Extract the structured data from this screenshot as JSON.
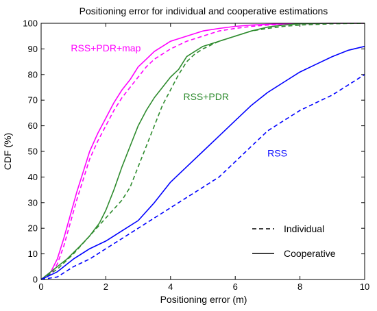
{
  "chart_data": {
    "type": "line",
    "title": "Positioning error for individual and cooperative estimations",
    "xlabel": "Positioning error (m)",
    "ylabel": "CDF (%)",
    "xlim": [
      0,
      10
    ],
    "ylim": [
      0,
      100
    ],
    "xticks": [
      "0",
      "2",
      "4",
      "6",
      "8",
      "10"
    ],
    "yticks": [
      "0",
      "10",
      "20",
      "30",
      "40",
      "50",
      "60",
      "70",
      "80",
      "90",
      "100"
    ],
    "grid": false,
    "legend": {
      "position": "lower-right",
      "entries": [
        {
          "label": "Individual",
          "style": "dashed"
        },
        {
          "label": "Cooperative",
          "style": "solid"
        }
      ]
    },
    "annotations": [
      {
        "text": "RSS+PDR+map",
        "color": "#ff00ff",
        "x": 2.0,
        "y": 89
      },
      {
        "text": "RSS+PDR",
        "color": "#2e8b2e",
        "x": 5.1,
        "y": 70
      },
      {
        "text": "RSS",
        "color": "#0000ff",
        "x": 7.3,
        "y": 48
      }
    ],
    "series": [
      {
        "color": "#ff00ff",
        "style": "solid",
        "x": [
          0,
          0.3,
          0.5,
          0.7,
          0.9,
          1.1,
          1.3,
          1.5,
          1.75,
          2.0,
          2.25,
          2.5,
          2.75,
          3.0,
          3.25,
          3.5,
          3.75,
          4.0,
          4.5,
          5.0,
          5.5,
          6.0,
          6.5,
          7.0,
          8.0,
          9.0,
          10.0
        ],
        "y": [
          0,
          3,
          8,
          16,
          25,
          34,
          42,
          50,
          57,
          63,
          69,
          74,
          78,
          83,
          86,
          89,
          91,
          93,
          95,
          97,
          98,
          98.8,
          99.3,
          99.6,
          99.9,
          100,
          100
        ]
      },
      {
        "color": "#ff00ff",
        "style": "dashed",
        "x": [
          0,
          0.3,
          0.5,
          0.7,
          0.9,
          1.1,
          1.3,
          1.5,
          1.75,
          2.0,
          2.25,
          2.5,
          2.75,
          3.0,
          3.25,
          3.5,
          3.75,
          4.0,
          4.5,
          5.0,
          5.5,
          6.0,
          6.5,
          7.0,
          8.0,
          9.0,
          10.0
        ],
        "y": [
          0,
          2,
          6,
          13,
          22,
          31,
          39,
          47,
          54,
          60,
          66,
          71,
          75,
          79,
          83,
          86,
          88,
          90,
          93,
          95,
          97,
          98,
          98.8,
          99.3,
          99.8,
          100,
          100
        ]
      },
      {
        "color": "#2e8b2e",
        "style": "solid",
        "x": [
          0,
          0.4,
          0.8,
          1.2,
          1.5,
          1.8,
          2.0,
          2.25,
          2.5,
          2.75,
          3.0,
          3.25,
          3.5,
          3.75,
          4.0,
          4.25,
          4.5,
          4.75,
          5.0,
          5.5,
          6.0,
          6.5,
          7.0,
          7.5,
          8.0,
          9.0,
          10.0
        ],
        "y": [
          0,
          4,
          8,
          13,
          17,
          22,
          27,
          35,
          44,
          52,
          60,
          66,
          71,
          75,
          79,
          82,
          87,
          89,
          91,
          93,
          95,
          97,
          98.5,
          99.3,
          99.8,
          100,
          100
        ]
      },
      {
        "color": "#2e8b2e",
        "style": "dashed",
        "x": [
          0,
          0.5,
          1.0,
          1.5,
          2.0,
          2.5,
          2.75,
          3.0,
          3.25,
          3.5,
          3.75,
          4.0,
          4.25,
          4.5,
          4.75,
          5.0,
          5.5,
          6.0,
          6.5,
          7.0,
          7.5,
          8.0,
          9.0,
          10.0
        ],
        "y": [
          0,
          4,
          10,
          17,
          24,
          31,
          36,
          44,
          52,
          60,
          68,
          74,
          80,
          85,
          88,
          90,
          93,
          95,
          97,
          98,
          98.8,
          99.3,
          99.8,
          100
        ]
      },
      {
        "color": "#0000ff",
        "style": "solid",
        "x": [
          0,
          0.5,
          1.0,
          1.5,
          2.0,
          2.5,
          3.0,
          3.5,
          4.0,
          4.5,
          5.0,
          5.5,
          6.0,
          6.5,
          7.0,
          7.5,
          8.0,
          8.5,
          9.0,
          9.5,
          10.0
        ],
        "y": [
          0,
          3,
          8,
          12,
          15,
          19,
          23,
          30,
          38,
          44,
          50,
          56,
          62,
          68,
          73,
          77,
          81,
          84,
          87,
          89.5,
          91
        ]
      },
      {
        "color": "#0000ff",
        "style": "dashed",
        "x": [
          0,
          0.5,
          1.0,
          1.5,
          2.0,
          2.5,
          3.0,
          3.5,
          4.0,
          4.5,
          5.0,
          5.5,
          6.0,
          6.5,
          7.0,
          7.5,
          8.0,
          8.5,
          9.0,
          9.5,
          10.0
        ],
        "y": [
          0,
          1,
          5,
          8,
          12,
          16,
          20,
          24,
          28,
          32,
          36,
          40,
          46,
          52,
          58,
          62,
          66,
          69,
          72,
          76,
          80
        ]
      }
    ]
  }
}
